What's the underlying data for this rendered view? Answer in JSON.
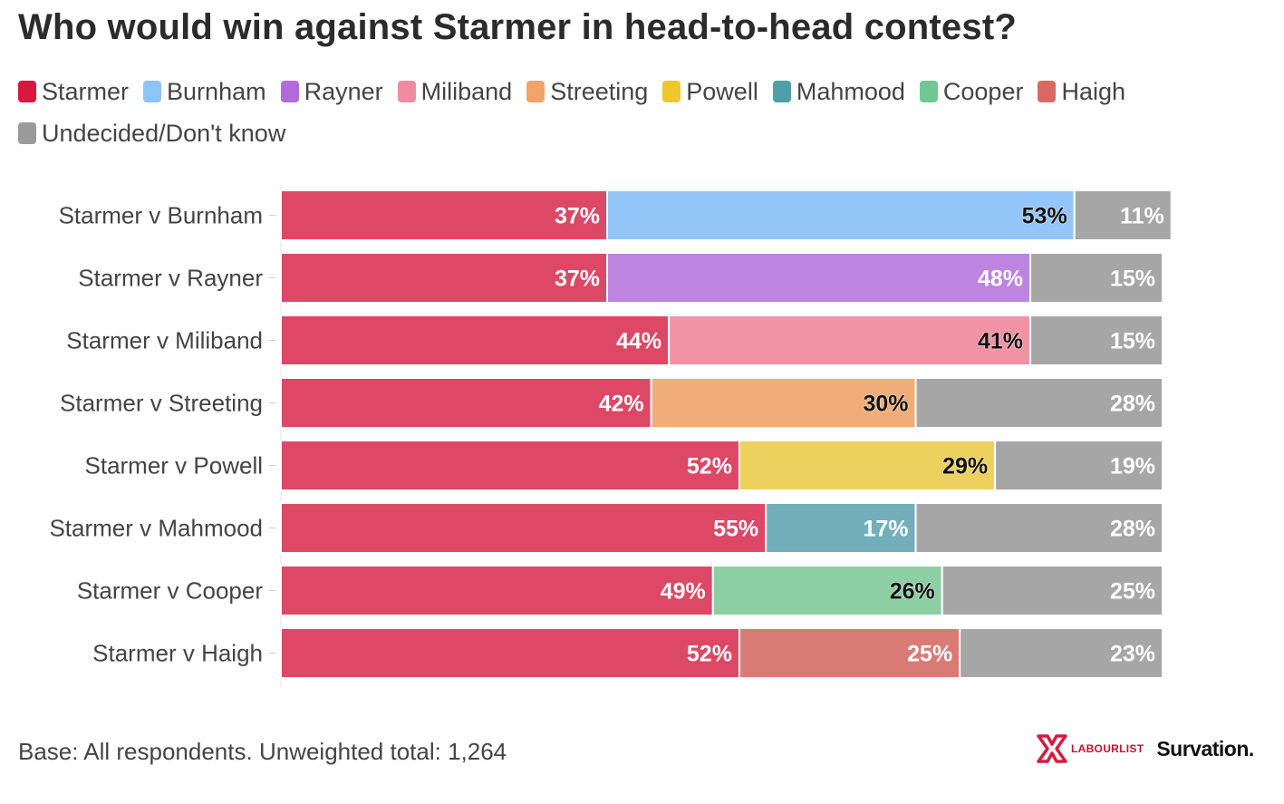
{
  "title": "Who would win against Starmer in head-to-head contest?",
  "legend": [
    {
      "label": "Starmer",
      "color": "#d7193f"
    },
    {
      "label": "Burnham",
      "color": "#8ec3f7"
    },
    {
      "label": "Rayner",
      "color": "#b26ad8"
    },
    {
      "label": "Miliband",
      "color": "#f08ca0"
    },
    {
      "label": "Streeting",
      "color": "#f2a36a"
    },
    {
      "label": "Powell",
      "color": "#eec62f"
    },
    {
      "label": "Mahmood",
      "color": "#4f9ea8"
    },
    {
      "label": "Cooper",
      "color": "#6fc796"
    },
    {
      "label": "Haigh",
      "color": "#d86a66"
    },
    {
      "label": "Undecided/Don't know",
      "color": "#9a9a9a"
    }
  ],
  "chart_data": {
    "type": "bar",
    "orientation": "horizontal",
    "stacked": true,
    "categories": [
      "Starmer v Burnham",
      "Starmer v Rayner",
      "Starmer v Miliband",
      "Starmer v Streeting",
      "Starmer v Powell",
      "Starmer v Mahmood",
      "Starmer v Cooper",
      "Starmer v Haigh"
    ],
    "segments": [
      {
        "role": "Starmer",
        "values": [
          37,
          37,
          44,
          42,
          52,
          55,
          49,
          52
        ],
        "labels": [
          "37%",
          "37%",
          "44%",
          "42%",
          "52%",
          "55%",
          "49%",
          "52%"
        ],
        "colors": [
          "#dc4865",
          "#dc4865",
          "#dc4865",
          "#dc4865",
          "#dc4865",
          "#dc4865",
          "#dc4865",
          "#dc4865"
        ]
      },
      {
        "role": "Challenger",
        "values": [
          53,
          48,
          41,
          30,
          29,
          17,
          26,
          25
        ],
        "labels": [
          "53%",
          "48%",
          "41%",
          "30%",
          "29%",
          "17%",
          "26%",
          "25%"
        ],
        "colors": [
          "#94c5f9",
          "#bd84e0",
          "#f293a5",
          "#f0ad7a",
          "#ecd15e",
          "#73afba",
          "#8ccfa3",
          "#d97b75"
        ]
      },
      {
        "role": "Undecided/Don't know",
        "values": [
          11,
          15,
          15,
          28,
          19,
          28,
          25,
          23
        ],
        "labels": [
          "11%",
          "15%",
          "15%",
          "28%",
          "19%",
          "28%",
          "25%",
          "23%"
        ],
        "colors": [
          "#a6a6a6",
          "#a6a6a6",
          "#a6a6a6",
          "#a6a6a6",
          "#a6a6a6",
          "#a6a6a6",
          "#a6a6a6",
          "#a6a6a6"
        ]
      }
    ],
    "label_text_color": [
      "white",
      "dark",
      "white"
    ],
    "challenger_label_text_color": [
      "dark",
      "white",
      "dark",
      "dark",
      "dark",
      "white",
      "dark",
      "white"
    ],
    "xlim": [
      0,
      100
    ],
    "grid": false,
    "legend_position": "top-left"
  },
  "footer": "Base: All respondents. Unweighted total: 1,264",
  "logos": {
    "labourlist": "LABOURLIST",
    "survation": "Survation."
  }
}
